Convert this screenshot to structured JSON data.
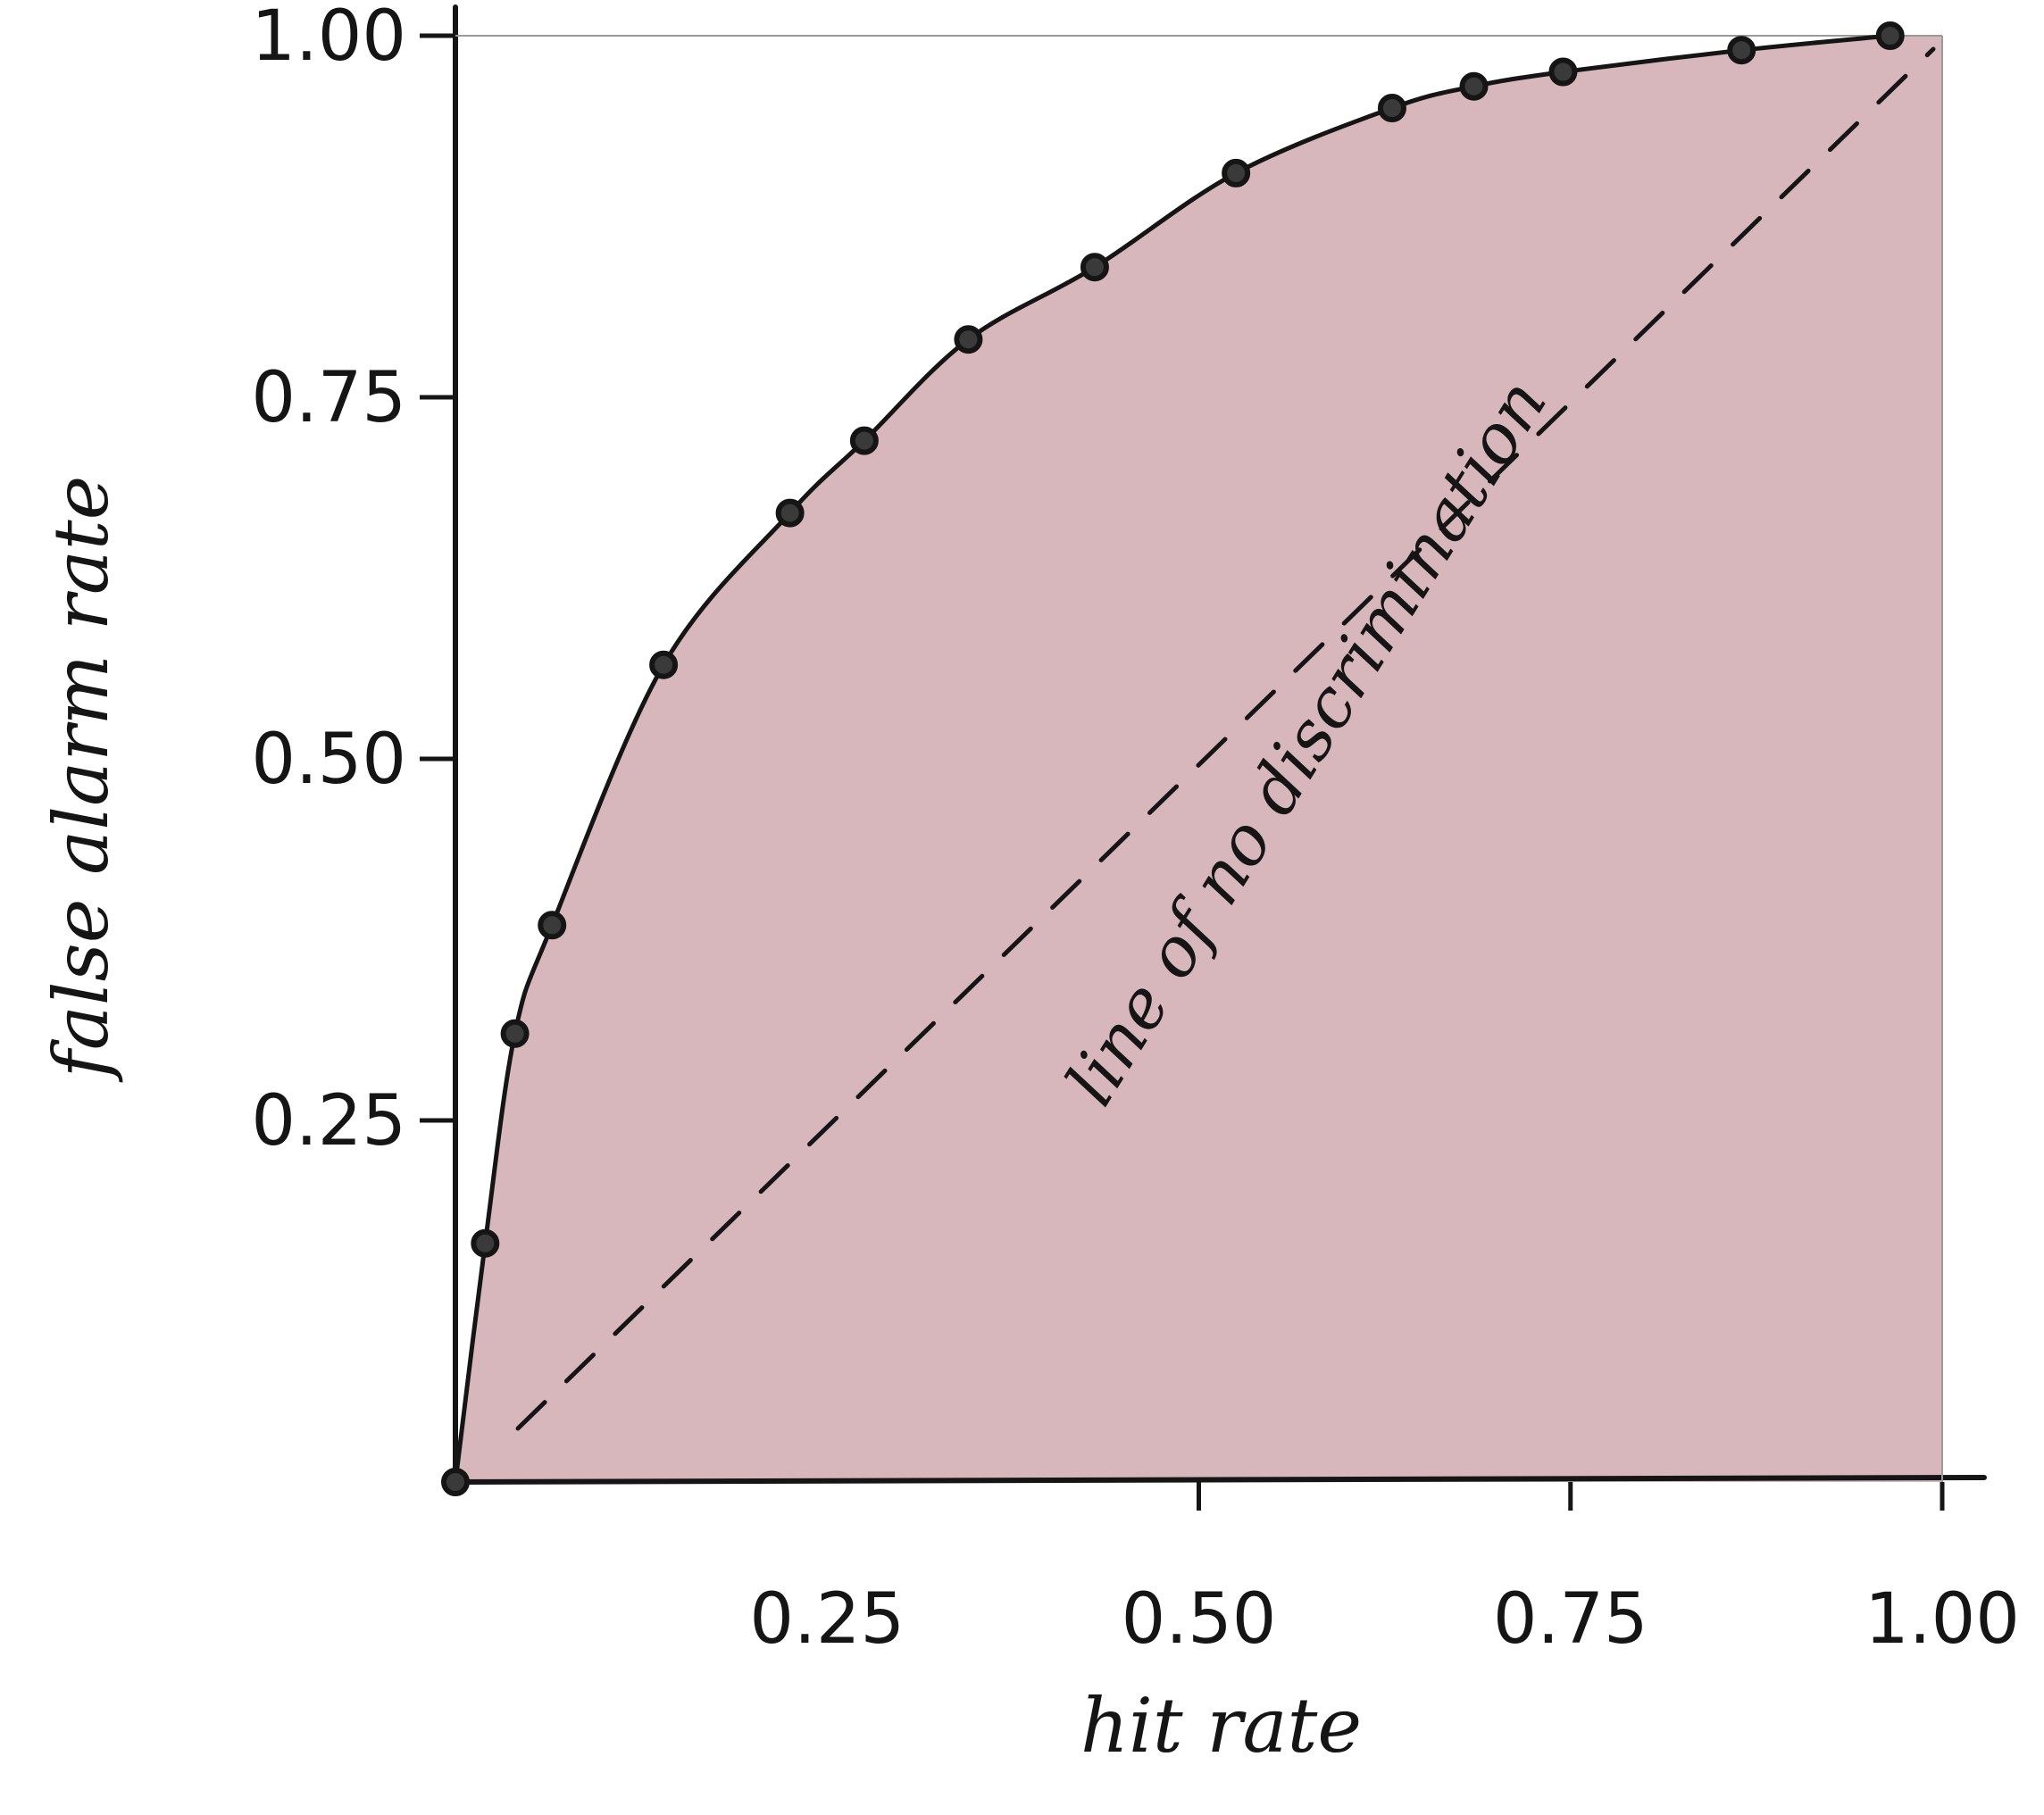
{
  "chart_data": {
    "type": "line",
    "xlabel": "hit rate",
    "ylabel": "false alarm rate",
    "xlim": [
      0,
      1
    ],
    "ylim": [
      0,
      1
    ],
    "x_ticks": [
      {
        "value": 0.25,
        "label": "0.25"
      },
      {
        "value": 0.5,
        "label": "0.50"
      },
      {
        "value": 0.75,
        "label": "0.75"
      },
      {
        "value": 1.0,
        "label": "1.00"
      }
    ],
    "y_ticks": [
      {
        "value": 0.25,
        "label": "0.25"
      },
      {
        "value": 0.5,
        "label": "0.50"
      },
      {
        "value": 0.75,
        "label": "0.75"
      },
      {
        "value": 1.0,
        "label": "1.00"
      }
    ],
    "series": [
      {
        "x": [
          0.0,
          0.02,
          0.04,
          0.065,
          0.14,
          0.225,
          0.275,
          0.345,
          0.43,
          0.525,
          0.63,
          0.685,
          0.745,
          0.865,
          0.965
        ],
        "y": [
          0.0,
          0.165,
          0.31,
          0.385,
          0.565,
          0.67,
          0.72,
          0.79,
          0.84,
          0.905,
          0.95,
          0.965,
          0.975,
          0.99,
          1.0
        ]
      }
    ],
    "reference_line": {
      "x": [
        0.0,
        1.0
      ],
      "y": [
        0.0,
        1.0
      ],
      "style": "dashed"
    },
    "annotations": [
      {
        "text": "line of no discrimination"
      }
    ],
    "fill_under_curve": true,
    "grid": false,
    "colors": {
      "fill": "#d7b7bc",
      "ink": "#151515"
    }
  }
}
